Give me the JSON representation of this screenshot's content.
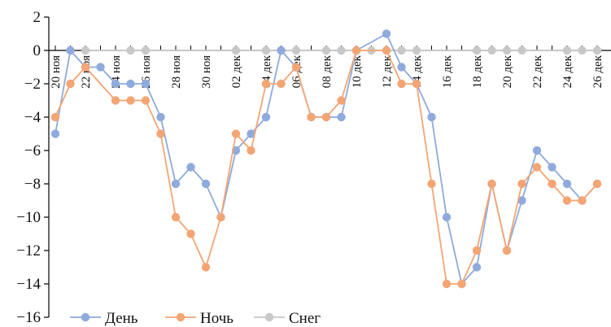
{
  "chart_data": {
    "type": "line",
    "title": "",
    "xlabel": "",
    "ylabel": "",
    "ylim": [
      -16,
      2
    ],
    "y_ticks": [
      2,
      0,
      -2,
      -4,
      -6,
      -8,
      -10,
      -12,
      -14,
      -16
    ],
    "y_tick_labels": [
      "2",
      "0",
      "−2",
      "−4",
      "−6",
      "−8",
      "−10",
      "−12",
      "−14",
      "−16"
    ],
    "x_start": "2019-11-20",
    "x_tick_labels": [
      "20 ноя",
      "22 ноя",
      "24 ноя",
      "26 ноя",
      "28 ноя",
      "30 ноя",
      "02 дек",
      "04 дек",
      "06 дек",
      "08 дек",
      "10 дек",
      "12 дек",
      "14 дек",
      "16 дек",
      "18 дек",
      "20 дек",
      "22 дек",
      "24 дек",
      "26 дек"
    ],
    "x_tick_days": [
      0,
      2,
      4,
      6,
      8,
      10,
      12,
      14,
      16,
      18,
      20,
      22,
      24,
      26,
      28,
      30,
      32,
      34,
      36
    ],
    "legend_position": "bottom-left",
    "grid": false,
    "series": [
      {
        "name": "День",
        "color": "#8faadc",
        "points": [
          [
            0,
            -5
          ],
          [
            1,
            0
          ],
          [
            2,
            -1
          ],
          [
            3,
            -1
          ],
          [
            4,
            -2
          ],
          [
            5,
            -2
          ],
          [
            6,
            -2
          ],
          [
            7,
            -4
          ],
          [
            8,
            -8
          ],
          [
            9,
            -7
          ],
          [
            10,
            -8
          ],
          [
            11,
            -10
          ],
          [
            12,
            -6
          ],
          [
            13,
            -5
          ],
          [
            14,
            -4
          ],
          [
            15,
            0
          ],
          [
            16,
            -1
          ],
          [
            17,
            -4
          ],
          [
            18,
            -4
          ],
          [
            19,
            -4
          ],
          [
            20,
            0
          ],
          [
            22,
            1
          ],
          [
            23,
            -1
          ],
          [
            24,
            -2
          ],
          [
            25,
            -4
          ],
          [
            26,
            -10
          ],
          [
            27,
            -14
          ],
          [
            28,
            -13
          ],
          [
            29,
            -8
          ],
          [
            30,
            -12
          ],
          [
            31,
            -9
          ],
          [
            32,
            -6
          ],
          [
            33,
            -7
          ],
          [
            34,
            -8
          ],
          [
            35,
            -9
          ],
          [
            36,
            -8
          ]
        ]
      },
      {
        "name": "Ночь",
        "color": "#f4a574",
        "points": [
          [
            0,
            -4
          ],
          [
            1,
            -2
          ],
          [
            2,
            -1
          ],
          [
            4,
            -3
          ],
          [
            5,
            -3
          ],
          [
            6,
            -3
          ],
          [
            7,
            -5
          ],
          [
            8,
            -10
          ],
          [
            9,
            -11
          ],
          [
            10,
            -13
          ],
          [
            11,
            -10
          ],
          [
            12,
            -5
          ],
          [
            13,
            -6
          ],
          [
            14,
            -2
          ],
          [
            15,
            -2
          ],
          [
            16,
            -1
          ],
          [
            17,
            -4
          ],
          [
            18,
            -4
          ],
          [
            19,
            -3
          ],
          [
            20,
            0
          ],
          [
            22,
            0
          ],
          [
            23,
            -2
          ],
          [
            24,
            -2
          ],
          [
            25,
            -8
          ],
          [
            26,
            -14
          ],
          [
            27,
            -14
          ],
          [
            28,
            -12
          ],
          [
            29,
            -8
          ],
          [
            30,
            -12
          ],
          [
            31,
            -8
          ],
          [
            32,
            -7
          ],
          [
            33,
            -8
          ],
          [
            34,
            -9
          ],
          [
            35,
            -9
          ],
          [
            36,
            -8
          ]
        ]
      },
      {
        "name": "Снег",
        "color": "#c8c8c8",
        "points": [
          [
            2,
            0
          ],
          [
            5,
            0
          ],
          [
            6,
            0
          ],
          [
            12,
            0
          ],
          [
            14,
            0
          ],
          [
            15,
            0
          ],
          [
            16,
            0
          ],
          [
            18,
            0
          ],
          [
            19,
            0
          ],
          [
            20,
            0
          ],
          [
            21,
            0
          ],
          [
            23,
            0
          ],
          [
            24,
            0
          ],
          [
            28,
            0
          ],
          [
            29,
            0
          ],
          [
            30,
            0
          ],
          [
            31,
            0
          ],
          [
            34,
            0
          ],
          [
            35,
            0
          ],
          [
            36,
            0
          ]
        ]
      }
    ]
  }
}
